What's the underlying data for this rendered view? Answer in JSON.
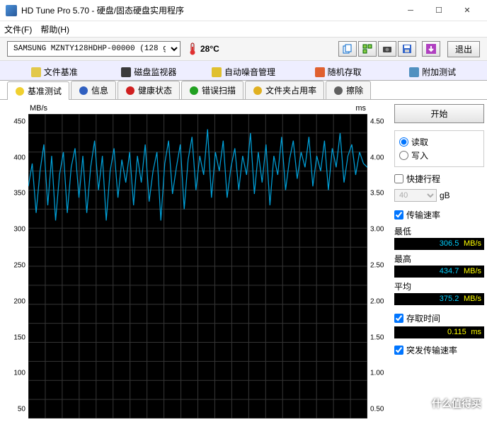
{
  "window": {
    "title": "HD Tune Pro 5.70 - 硬盘/固态硬盘实用程序"
  },
  "menu": {
    "file": "文件(F)",
    "help": "帮助(H)"
  },
  "toolbar": {
    "drive": "SAMSUNG MZNTY128HDHP-00000 (128 g",
    "temp": "28°C",
    "exit": "退出"
  },
  "topTabs": [
    {
      "label": "文件基准",
      "iconColor": "#e2c84a"
    },
    {
      "label": "磁盘监视器",
      "iconColor": "#3a3a3a"
    },
    {
      "label": "自动噪音管理",
      "iconColor": "#e0c030"
    },
    {
      "label": "随机存取",
      "iconColor": "#e06030"
    },
    {
      "label": "附加测试",
      "iconColor": "#5090c0"
    }
  ],
  "tabs": [
    {
      "label": "基准测试",
      "iconColor": "#f0d030",
      "active": true
    },
    {
      "label": "信息",
      "iconColor": "#3060c0"
    },
    {
      "label": "健康状态",
      "iconColor": "#d02020"
    },
    {
      "label": "错误扫描",
      "iconColor": "#20a020"
    },
    {
      "label": "文件夹占用率",
      "iconColor": "#e0b020"
    },
    {
      "label": "擦除",
      "iconColor": "#606060"
    }
  ],
  "chart": {
    "leftLabel": "MB/s",
    "rightLabel": "ms",
    "yTicksLeft": [
      "450",
      "400",
      "350",
      "300",
      "250",
      "200",
      "150",
      "100",
      "50"
    ],
    "yTicksRight": [
      "4.50",
      "4.00",
      "3.50",
      "3.00",
      "2.50",
      "2.00",
      "1.50",
      "1.00",
      "0.50"
    ],
    "gridColor": "#353535",
    "lineColor": "#00a0d8",
    "series": [
      355,
      385,
      320,
      375,
      410,
      330,
      395,
      310,
      370,
      400,
      320,
      380,
      405,
      340,
      395,
      320,
      380,
      415,
      350,
      395,
      310,
      375,
      405,
      340,
      390,
      360,
      400,
      330,
      395,
      360,
      410,
      335,
      375,
      400,
      310,
      385,
      415,
      345,
      380,
      410,
      325,
      390,
      420,
      350,
      395,
      370,
      430,
      340,
      400,
      375,
      415,
      340,
      380,
      405,
      350,
      395,
      370,
      425,
      345,
      400,
      360,
      410,
      330,
      395,
      370,
      420,
      350,
      390,
      415,
      365,
      400,
      380,
      420,
      355,
      395,
      375,
      415,
      350,
      405,
      380,
      425,
      360,
      395,
      410,
      370,
      400,
      385,
      380
    ],
    "yMin": 50,
    "yMax": 450
  },
  "side": {
    "start": "开始",
    "read": "读取",
    "write": "写入",
    "shortStroke": "快捷行程",
    "gbValue": "40",
    "gbUnit": "gB",
    "transferRate": "传输速率",
    "minLabel": "最低",
    "minVal": "306.5",
    "minUnit": "MB/s",
    "maxLabel": "最高",
    "maxVal": "434.7",
    "maxUnit": "MB/s",
    "avgLabel": "平均",
    "avgVal": "375.2",
    "avgUnit": "MB/s",
    "accessTime": "存取时间",
    "accessVal": "0.115",
    "accessUnit": "ms",
    "burstRate": "突发传输速率"
  },
  "watermark": "什么值得买"
}
